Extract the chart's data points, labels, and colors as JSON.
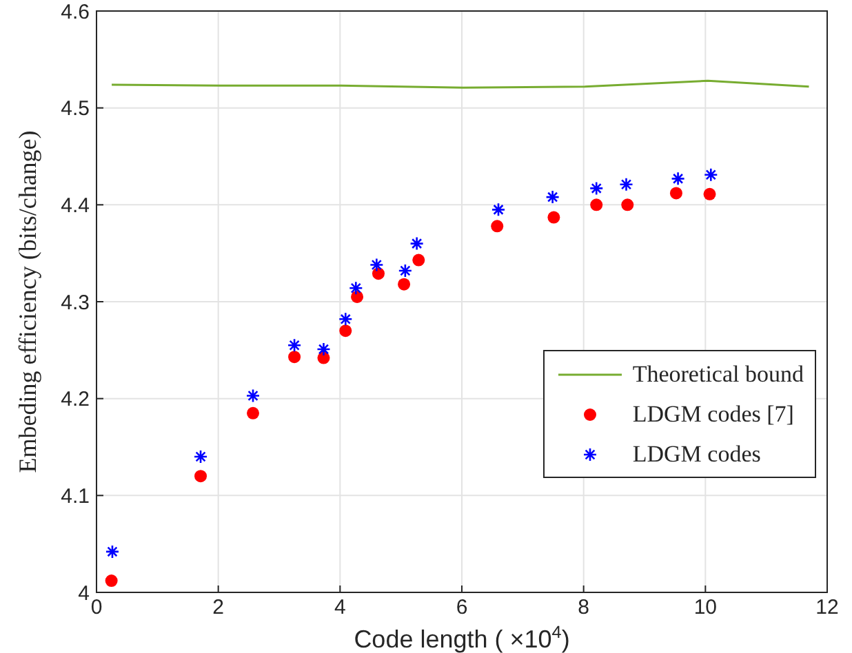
{
  "chart_data": {
    "type": "scatter",
    "xlabel": "Code length ( ×10$^{4}$)",
    "ylabel": "Embeding efficiency (bits/change)",
    "xlim": [
      0,
      12
    ],
    "xticks": [
      0,
      2,
      4,
      6,
      8,
      10,
      12
    ],
    "ylim": [
      4,
      4.6
    ],
    "yticks": [
      4,
      4.1,
      4.2,
      4.3,
      4.4,
      4.5,
      4.6
    ],
    "grid": true,
    "legend": "right",
    "series": [
      {
        "name": "Theoretical bound",
        "type": "line",
        "color": "#77ac30",
        "marker": "none",
        "line_style": "solid",
        "x": [
          0.25,
          2.02,
          4.02,
          6.02,
          8.02,
          10.04,
          11.7
        ],
        "values": [
          4.524,
          4.523,
          4.523,
          4.521,
          4.522,
          4.528,
          4.522
        ]
      },
      {
        "name": "LDGM codes [7]",
        "color": "#ff0000",
        "marker": "circle",
        "x": [
          0.245,
          1.71,
          2.57,
          3.25,
          3.73,
          4.09,
          4.28,
          4.63,
          5.05,
          5.29,
          6.58,
          7.51,
          8.21,
          8.72,
          9.52,
          10.07
        ],
        "values": [
          4.012,
          4.12,
          4.185,
          4.243,
          4.242,
          4.27,
          4.305,
          4.329,
          4.318,
          4.343,
          4.378,
          4.387,
          4.4,
          4.4,
          4.412,
          4.411
        ]
      },
      {
        "name": "LDGM codes",
        "color": "#0000ff",
        "marker": "cross",
        "x": [
          0.26,
          1.71,
          2.57,
          3.25,
          3.73,
          4.09,
          4.26,
          4.6,
          5.07,
          5.26,
          6.6,
          7.49,
          8.21,
          8.7,
          9.55,
          10.09
        ],
        "values": [
          4.042,
          4.14,
          4.203,
          4.255,
          4.251,
          4.282,
          4.314,
          4.338,
          4.332,
          4.36,
          4.395,
          4.408,
          4.417,
          4.421,
          4.427,
          4.431
        ]
      }
    ]
  }
}
